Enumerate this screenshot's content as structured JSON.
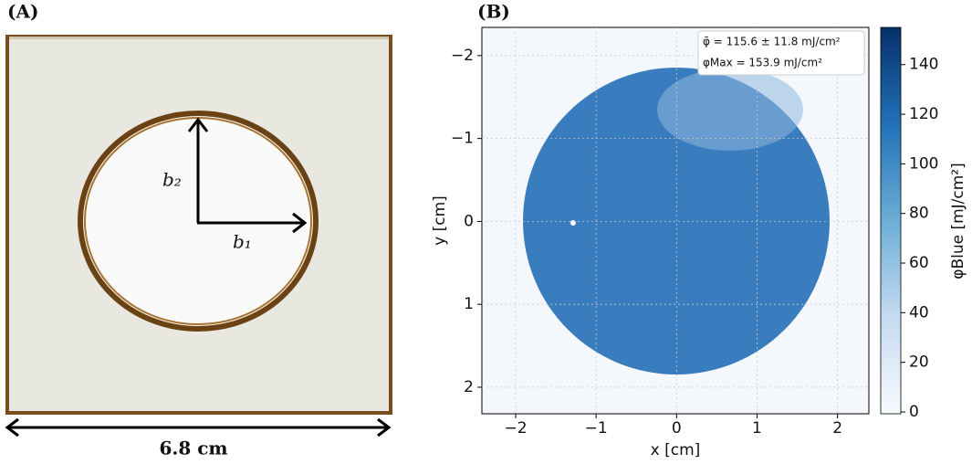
{
  "panel_a": {
    "label": "(A)",
    "b2": "b₂",
    "b1": "b₁",
    "scale": "6.8 cm"
  },
  "chart_data": {
    "type": "heatmap",
    "label": "(B)",
    "xlabel": "x [cm]",
    "ylabel": "y [cm]",
    "xlim": [
      -2.42,
      2.39
    ],
    "ylim": [
      -2.34,
      2.32
    ],
    "xticks": [
      {
        "value": -2,
        "label": "−2"
      },
      {
        "value": -1,
        "label": "−1"
      },
      0,
      1,
      2
    ],
    "yticks": [
      {
        "value": -2,
        "label": "−2"
      },
      {
        "value": -1,
        "label": "−1"
      },
      0,
      1,
      2
    ],
    "grid": true,
    "annotations": [
      "φ̄ = 115.6 ± 11.8 mJ/cm²",
      "φMax = 153.9 mJ/cm²"
    ],
    "colorbar_label": "φBlue  [mJ/cm²]",
    "clim": [
      0,
      155
    ],
    "cticks": [
      0,
      20,
      40,
      60,
      80,
      100,
      120,
      140
    ],
    "colormap": [
      "#f7fbff",
      "#c6dbef",
      "#6baed6",
      "#2171b5",
      "#08306b"
    ]
  }
}
